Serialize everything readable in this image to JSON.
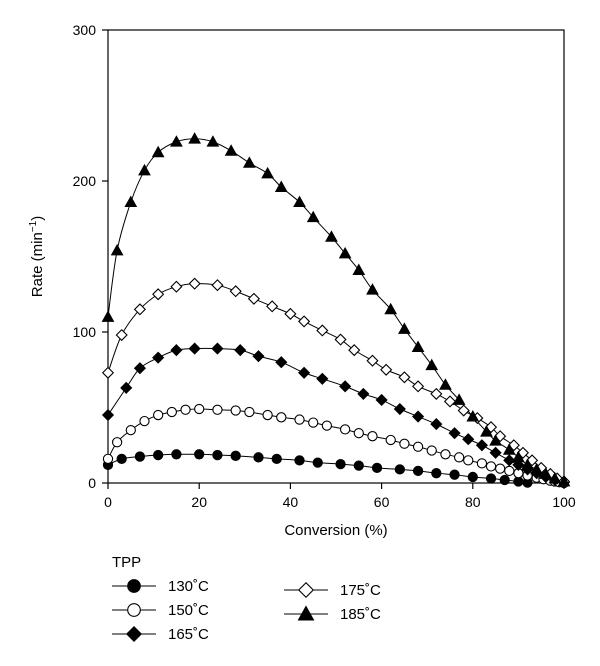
{
  "chart_data": {
    "type": "scatter",
    "title": "",
    "xlabel": "Conversion (%)",
    "ylabel_main": "Rate (min",
    "ylabel_sup": "−1",
    "ylabel_close": ")",
    "xlim": [
      0,
      100
    ],
    "ylim": [
      0,
      300
    ],
    "x_ticks": [
      "0",
      "20",
      "40",
      "60",
      "80",
      "100"
    ],
    "y_ticks": [
      "0",
      "100",
      "200",
      "300"
    ],
    "grid": false,
    "legend": {
      "title": "TPP",
      "placement": "bottom-left-below-axes"
    },
    "series": [
      {
        "name": "130˚C",
        "marker": "filled-circle",
        "points": [
          [
            0,
            12
          ],
          [
            3,
            16
          ],
          [
            7,
            17.5
          ],
          [
            11,
            18.5
          ],
          [
            15,
            19
          ],
          [
            20,
            19
          ],
          [
            24,
            18.5
          ],
          [
            28,
            18
          ],
          [
            33,
            17
          ],
          [
            37,
            16
          ],
          [
            42,
            15
          ],
          [
            46,
            13.5
          ],
          [
            51,
            12.5
          ],
          [
            55,
            11.5
          ],
          [
            59,
            10
          ],
          [
            64,
            9
          ],
          [
            68,
            8
          ],
          [
            72,
            6.5
          ],
          [
            76,
            5.5
          ],
          [
            80,
            4
          ],
          [
            84,
            3
          ],
          [
            87,
            2
          ],
          [
            90,
            1
          ],
          [
            92,
            0.3
          ]
        ]
      },
      {
        "name": "150˚C",
        "marker": "open-circle",
        "points": [
          [
            0,
            16
          ],
          [
            2,
            27
          ],
          [
            5,
            35
          ],
          [
            8,
            41
          ],
          [
            11,
            45
          ],
          [
            14,
            47
          ],
          [
            17,
            48.5
          ],
          [
            20,
            49
          ],
          [
            24,
            48.5
          ],
          [
            28,
            48
          ],
          [
            31,
            47
          ],
          [
            35,
            45
          ],
          [
            38,
            43.5
          ],
          [
            42,
            42
          ],
          [
            45,
            40
          ],
          [
            48,
            38
          ],
          [
            52,
            35.5
          ],
          [
            55,
            33
          ],
          [
            58,
            31
          ],
          [
            62,
            28.5
          ],
          [
            65,
            26
          ],
          [
            68,
            24
          ],
          [
            71,
            21.5
          ],
          [
            74,
            19
          ],
          [
            77,
            17
          ],
          [
            79,
            15
          ],
          [
            82,
            13
          ],
          [
            84,
            11
          ],
          [
            86,
            9.5
          ],
          [
            88,
            8
          ],
          [
            90,
            6.5
          ],
          [
            92,
            5
          ],
          [
            94,
            3.5
          ],
          [
            95.5,
            2.5
          ],
          [
            97,
            1.5
          ],
          [
            98,
            1
          ],
          [
            99,
            0.5
          ],
          [
            100,
            0
          ]
        ]
      },
      {
        "name": "165˚C",
        "marker": "filled-diamond",
        "points": [
          [
            0,
            45
          ],
          [
            4,
            63
          ],
          [
            7,
            76
          ],
          [
            11,
            83
          ],
          [
            15,
            88
          ],
          [
            19,
            89
          ],
          [
            24,
            89
          ],
          [
            29,
            88
          ],
          [
            33,
            84
          ],
          [
            38,
            80
          ],
          [
            43,
            73
          ],
          [
            47,
            69
          ],
          [
            52,
            64
          ],
          [
            56,
            59
          ],
          [
            60,
            55
          ],
          [
            64,
            49
          ],
          [
            68,
            44
          ],
          [
            72,
            39
          ],
          [
            76,
            33
          ],
          [
            79,
            29
          ],
          [
            82,
            25
          ],
          [
            85,
            20
          ],
          [
            88,
            15
          ],
          [
            90,
            12
          ],
          [
            92,
            9
          ],
          [
            94,
            6.5
          ],
          [
            96,
            4
          ],
          [
            98,
            2
          ],
          [
            100,
            0.5
          ]
        ]
      },
      {
        "name": "175˚C",
        "marker": "open-diamond",
        "points": [
          [
            0,
            73
          ],
          [
            3,
            98
          ],
          [
            7,
            115
          ],
          [
            11,
            125
          ],
          [
            15,
            130
          ],
          [
            19,
            132
          ],
          [
            24,
            131
          ],
          [
            28,
            127
          ],
          [
            32,
            122
          ],
          [
            36,
            117
          ],
          [
            40,
            112
          ],
          [
            43,
            107
          ],
          [
            47,
            101
          ],
          [
            51,
            95
          ],
          [
            54,
            88
          ],
          [
            58,
            81
          ],
          [
            61,
            75
          ],
          [
            65,
            70
          ],
          [
            68,
            64
          ],
          [
            72,
            59
          ],
          [
            75,
            54
          ],
          [
            78,
            48
          ],
          [
            81,
            43
          ],
          [
            84,
            37
          ],
          [
            86,
            31
          ],
          [
            89,
            25
          ],
          [
            91,
            20
          ],
          [
            93,
            15
          ],
          [
            95,
            10
          ],
          [
            97,
            6
          ],
          [
            98.5,
            3
          ],
          [
            100,
            1
          ]
        ]
      },
      {
        "name": "185˚C",
        "marker": "filled-triangle",
        "points": [
          [
            0,
            110
          ],
          [
            2,
            154
          ],
          [
            5,
            186
          ],
          [
            8,
            207
          ],
          [
            11,
            219
          ],
          [
            15,
            226
          ],
          [
            19,
            228
          ],
          [
            23,
            226
          ],
          [
            27,
            220
          ],
          [
            31,
            212
          ],
          [
            35,
            205
          ],
          [
            38,
            196
          ],
          [
            42,
            186
          ],
          [
            45,
            176
          ],
          [
            49,
            163
          ],
          [
            52,
            152
          ],
          [
            55,
            141
          ],
          [
            58,
            128
          ],
          [
            62,
            115
          ],
          [
            65,
            102
          ],
          [
            68,
            90
          ],
          [
            71,
            78
          ],
          [
            74,
            65
          ],
          [
            77,
            55
          ],
          [
            80,
            44
          ],
          [
            83,
            34
          ],
          [
            85,
            28
          ],
          [
            88,
            22
          ],
          [
            90,
            17
          ],
          [
            92,
            12
          ],
          [
            94,
            9
          ],
          [
            96,
            6
          ],
          [
            98,
            3
          ],
          [
            100,
            1
          ]
        ]
      }
    ]
  }
}
